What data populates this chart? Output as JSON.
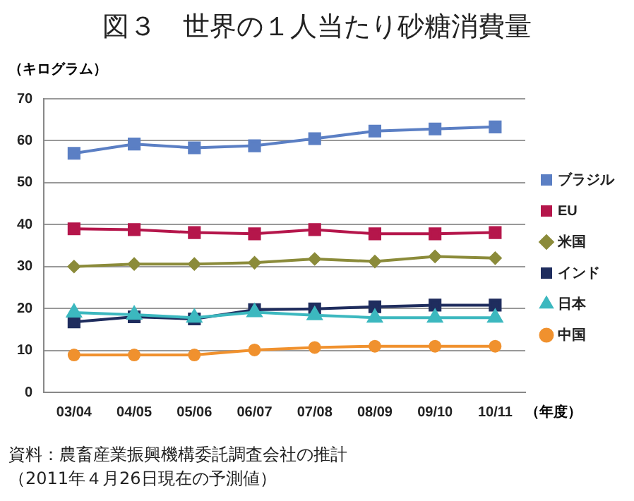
{
  "chart_data": {
    "type": "line",
    "title": "図３　世界の１人当たり砂糖消費量",
    "ylabel": "（キログラム）",
    "xlabel": "（年度）",
    "categories": [
      "03/04",
      "04/05",
      "05/06",
      "06/07",
      "07/08",
      "08/09",
      "09/10",
      "10/11"
    ],
    "series": [
      {
        "name": "ブラジル",
        "color": "#5b7fc4",
        "marker": "square",
        "values": [
          57,
          59.2,
          58.3,
          58.8,
          60.5,
          62.3,
          62.8,
          63.3
        ]
      },
      {
        "name": "EU",
        "color": "#b5164b",
        "marker": "square",
        "values": [
          39,
          38.8,
          38.1,
          37.8,
          38.8,
          37.8,
          37.8,
          38.1
        ]
      },
      {
        "name": "米国",
        "color": "#8b8b3a",
        "marker": "diamond",
        "values": [
          30,
          30.6,
          30.6,
          30.9,
          31.8,
          31.2,
          32.4,
          32
        ]
      },
      {
        "name": "インド",
        "color": "#1f2d5e",
        "marker": "square",
        "values": [
          16.8,
          18,
          17.5,
          19.7,
          19.9,
          20.4,
          20.8,
          20.8
        ]
      },
      {
        "name": "日本",
        "color": "#3cb8bf",
        "marker": "triangle",
        "values": [
          19,
          18.5,
          17.8,
          19.1,
          18.4,
          17.8,
          17.8,
          17.8
        ]
      },
      {
        "name": "中国",
        "color": "#f0912e",
        "marker": "circle",
        "values": [
          8.9,
          8.9,
          8.9,
          10.1,
          10.7,
          11,
          11,
          11
        ]
      }
    ],
    "ylim": [
      0,
      70
    ],
    "yticks": [
      0,
      10,
      20,
      30,
      40,
      50,
      60,
      70
    ],
    "grid": "y",
    "legend": "right",
    "annotations": [
      "資料：農畜産業振興機構委託調査会社の推計",
      "（2011年４月26日現在の予測値）"
    ]
  }
}
